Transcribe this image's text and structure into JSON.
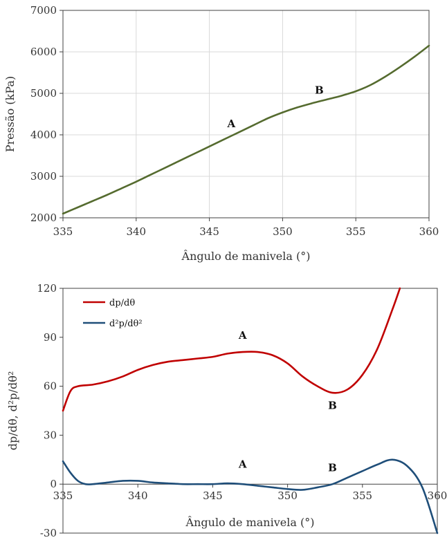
{
  "chart_data": [
    {
      "type": "line",
      "title": "",
      "xlabel": "Ângulo de manivela (°)",
      "ylabel": "Pressão (kPa)",
      "xlim": [
        335,
        360
      ],
      "ylim": [
        2000,
        7000
      ],
      "xticks": [
        "335",
        "340",
        "345",
        "350",
        "355",
        "360"
      ],
      "yticks": [
        "2000",
        "3000",
        "4000",
        "5000",
        "6000",
        "7000"
      ],
      "grid": true,
      "series": [
        {
          "color": "#556b2f",
          "x": [
            335,
            336,
            337,
            338,
            339,
            340,
            341,
            342,
            343,
            344,
            345,
            346,
            347,
            348,
            349,
            350,
            351,
            352,
            353,
            354,
            355,
            356,
            357,
            358,
            359,
            360
          ],
          "y": [
            2100,
            2250,
            2400,
            2550,
            2710,
            2870,
            3040,
            3210,
            3380,
            3550,
            3720,
            3890,
            4060,
            4230,
            4400,
            4540,
            4660,
            4760,
            4850,
            4940,
            5050,
            5200,
            5400,
            5630,
            5880,
            6150
          ]
        }
      ],
      "annotations": [
        {
          "text": "A",
          "x": 346.5,
          "y": 4180
        },
        {
          "text": "B",
          "x": 352.5,
          "y": 4990
        }
      ]
    },
    {
      "type": "line",
      "title": "",
      "xlabel": "Ângulo de manivela (°)",
      "ylabel": "dp/dθ, d²p/dθ²",
      "xlim": [
        335,
        360
      ],
      "ylim": [
        -30,
        120
      ],
      "xticks": [
        "335",
        "340",
        "345",
        "350",
        "355",
        "360"
      ],
      "yticks": [
        "-30",
        "0",
        "30",
        "60",
        "90",
        "120"
      ],
      "grid": false,
      "legend": "top-left",
      "series": [
        {
          "name": "dp/dθ",
          "color": "#c00000",
          "x": [
            335,
            335.5,
            336,
            337,
            338,
            339,
            340,
            341,
            342,
            343,
            344,
            345,
            346,
            347,
            348,
            349,
            350,
            351,
            352,
            353,
            354,
            355,
            356,
            357,
            357.5
          ],
          "y": [
            45,
            57,
            60,
            61,
            63,
            66,
            70,
            73,
            75,
            76,
            77,
            78,
            80,
            81,
            81,
            79,
            74,
            66,
            60,
            56,
            58,
            67,
            83,
            107,
            120
          ]
        },
        {
          "name": "d²p/dθ²",
          "color": "#1f4e79",
          "x": [
            335,
            335.5,
            336,
            336.5,
            337,
            338,
            339,
            340,
            341,
            342,
            343,
            344,
            345,
            346,
            347,
            348,
            349,
            350,
            351,
            352,
            353,
            354,
            355,
            356,
            357,
            358,
            359,
            360
          ],
          "y": [
            14,
            7,
            2,
            0,
            0,
            1,
            2,
            2,
            1,
            0.5,
            0,
            0,
            0,
            0.5,
            0,
            -1,
            -2,
            -3,
            -3.5,
            -2,
            0,
            4,
            8,
            12,
            15,
            11,
            -2,
            -30
          ]
        }
      ],
      "annotations": [
        {
          "text": "A",
          "x": 347.0,
          "y": 89
        },
        {
          "text": "B",
          "x": 353.0,
          "y": 46
        },
        {
          "text": "A",
          "x": 347.0,
          "y": 10
        },
        {
          "text": "B",
          "x": 353.0,
          "y": 8
        }
      ]
    }
  ]
}
